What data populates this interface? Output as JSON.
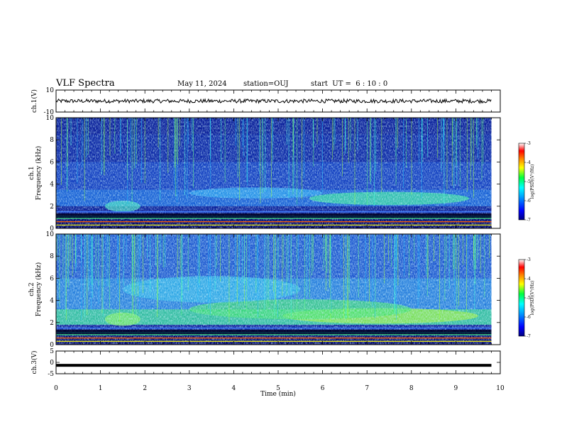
{
  "header": {
    "title": "VLF Spectra",
    "date": "May 11, 2024",
    "station": "station=OUJ",
    "start_ut": "start  UT =  6 : 10 : 0"
  },
  "chart_data": [
    {
      "type": "line",
      "panel": "ch1-waveform",
      "ylabel": "ch.1(V)",
      "ylim": [
        -10,
        10
      ],
      "yticks": [
        "10",
        "-10"
      ],
      "xlim": [
        0,
        10
      ],
      "level": 0,
      "color": "#000000"
    },
    {
      "type": "heatmap",
      "panel": "ch1-spectrogram",
      "ylabel_line1": "ch.1",
      "ylabel_line2": "Frequency (kHz)",
      "ylim": [
        0,
        10
      ],
      "yticks": [
        "10",
        "8",
        "6",
        "4",
        "2",
        "0"
      ],
      "xlim": [
        0,
        10
      ],
      "data_end_min": 9.8,
      "colorbar": {
        "label": "log(PSD)(V²/Hz)",
        "range": [
          -7,
          -3
        ],
        "ticks": [
          "-3",
          "-4",
          "-5",
          "-6",
          "-7"
        ]
      }
    },
    {
      "type": "heatmap",
      "panel": "ch2-spectrogram",
      "ylabel_line1": "ch.2",
      "ylabel_line2": "Frequency (kHz)",
      "ylim": [
        0,
        10
      ],
      "yticks": [
        "10",
        "8",
        "6",
        "4",
        "2",
        "0"
      ],
      "xlim": [
        0,
        10
      ],
      "data_end_min": 9.8,
      "colorbar": {
        "label": "log(PSD)(V²/Hz)",
        "range": [
          -7,
          -3
        ],
        "ticks": [
          "-3",
          "-4",
          "-5",
          "-6",
          "-7"
        ]
      }
    },
    {
      "type": "line",
      "panel": "ch3-waveform",
      "ylabel": "ch.3(V)",
      "ylim": [
        -5,
        5
      ],
      "yticks": [
        "5",
        "0",
        "-5"
      ],
      "xlim": [
        0,
        10
      ],
      "level": -1.3,
      "color": "#000000",
      "xlabel": "Time (min)",
      "xticks": [
        "0",
        "1",
        "2",
        "3",
        "4",
        "5",
        "6",
        "7",
        "8",
        "9",
        "10"
      ]
    }
  ]
}
